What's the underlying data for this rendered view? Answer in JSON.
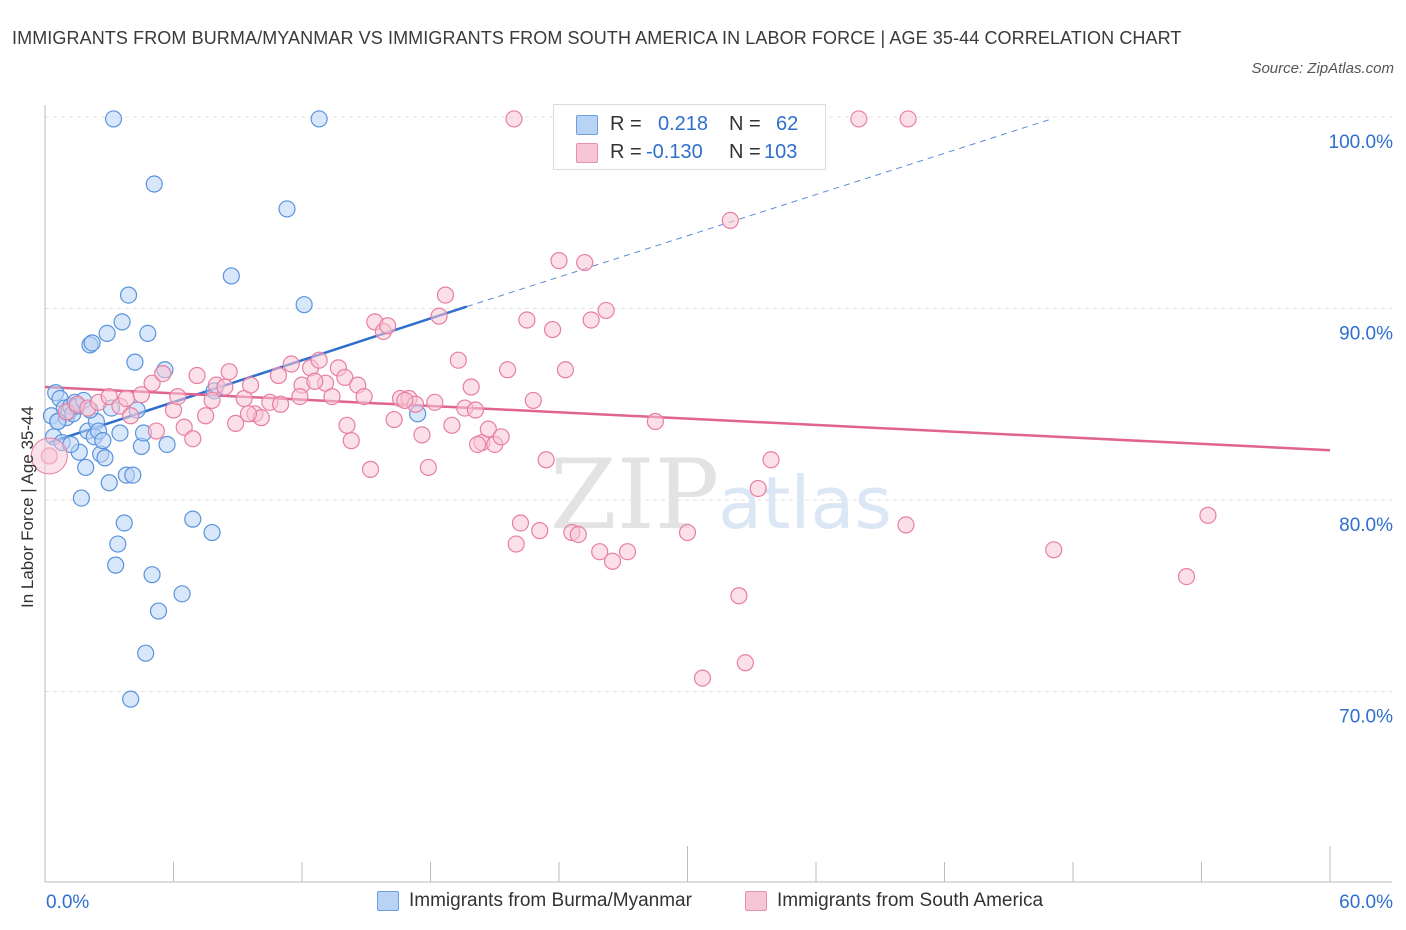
{
  "title": "IMMIGRANTS FROM BURMA/MYANMAR VS IMMIGRANTS FROM SOUTH AMERICA IN LABOR FORCE | AGE 35-44 CORRELATION CHART",
  "source": "Source: ZipAtlas.com",
  "watermark": {
    "zip": "ZIP",
    "atlas": "atlas"
  },
  "legend": [
    {
      "r_label": "R =",
      "r_value": "0.218",
      "n_label": "N =",
      "n_value": "62",
      "color": "#b9d3f5"
    },
    {
      "r_label": "R =",
      "r_value": "-0.130",
      "n_label": "N =",
      "n_value": "103",
      "color": "#f7c6d6"
    }
  ],
  "chart_data": {
    "type": "scatter",
    "title": "IMMIGRANTS FROM BURMA/MYANMAR VS IMMIGRANTS FROM SOUTH AMERICA IN LABOR FORCE | AGE 35-44 CORRELATION CHART",
    "xlabel": "",
    "ylabel": "In Labor Force | Age 35-44",
    "xlim": [
      0,
      60
    ],
    "ylim": [
      60,
      100
    ],
    "x_tick_labels": [
      "0.0%",
      "60.0%"
    ],
    "y_tick_labels": [
      "70.0%",
      "80.0%",
      "90.0%",
      "100.0%"
    ],
    "y_ticks": [
      70,
      80,
      90,
      100
    ],
    "grid": true,
    "legend_position": "bottom",
    "series": [
      {
        "name": "Immigrants from Burma/Myanmar",
        "color": "#5a93dc",
        "fill": "#b9d3f5",
        "trend": {
          "x0": 0.2,
          "y0": 83.0,
          "x1": 19.7,
          "y1": 90.1,
          "dash_to_x": 47.0,
          "dash_to_y": 99.9,
          "color": "#2f6fce"
        },
        "points": [
          [
            0.3,
            84.4
          ],
          [
            0.4,
            83.3
          ],
          [
            0.5,
            85.6
          ],
          [
            0.6,
            84.1
          ],
          [
            0.7,
            85.3
          ],
          [
            0.8,
            83.0
          ],
          [
            0.9,
            84.8
          ],
          [
            1.0,
            84.3
          ],
          [
            1.1,
            84.6
          ],
          [
            1.2,
            84.9
          ],
          [
            1.3,
            84.5
          ],
          [
            1.4,
            85.1
          ],
          [
            1.5,
            84.9
          ],
          [
            1.6,
            82.5
          ],
          [
            1.7,
            80.1
          ],
          [
            1.8,
            85.2
          ],
          [
            1.9,
            81.7
          ],
          [
            2.0,
            83.6
          ],
          [
            2.1,
            88.1
          ],
          [
            2.2,
            88.2
          ],
          [
            2.3,
            83.3
          ],
          [
            2.4,
            84.1
          ],
          [
            2.5,
            83.6
          ],
          [
            2.6,
            82.4
          ],
          [
            2.7,
            83.1
          ],
          [
            2.8,
            82.2
          ],
          [
            2.9,
            88.7
          ],
          [
            3.0,
            80.9
          ],
          [
            3.1,
            84.8
          ],
          [
            3.2,
            99.9
          ],
          [
            3.3,
            76.6
          ],
          [
            3.4,
            77.7
          ],
          [
            3.5,
            83.5
          ],
          [
            3.6,
            89.3
          ],
          [
            3.7,
            78.8
          ],
          [
            3.8,
            81.3
          ],
          [
            3.9,
            90.7
          ],
          [
            4.0,
            69.6
          ],
          [
            4.1,
            81.3
          ],
          [
            4.2,
            87.2
          ],
          [
            4.3,
            84.7
          ],
          [
            4.5,
            82.8
          ],
          [
            4.6,
            83.5
          ],
          [
            4.7,
            72.0
          ],
          [
            4.8,
            88.7
          ],
          [
            5.0,
            76.1
          ],
          [
            5.1,
            96.5
          ],
          [
            5.3,
            74.2
          ],
          [
            5.6,
            86.8
          ],
          [
            5.7,
            82.9
          ],
          [
            6.4,
            75.1
          ],
          [
            6.9,
            79.0
          ],
          [
            7.8,
            78.3
          ],
          [
            7.9,
            85.7
          ],
          [
            8.7,
            91.7
          ],
          [
            11.3,
            95.2
          ],
          [
            12.1,
            90.2
          ],
          [
            12.8,
            99.9
          ],
          [
            17.4,
            84.5
          ],
          [
            2.1,
            84.7
          ],
          [
            1.2,
            82.9
          ],
          [
            0.6,
            84.1
          ]
        ]
      },
      {
        "name": "Immigrants from South America",
        "color": "#e87ea3",
        "fill": "#f7c6d6",
        "trend": {
          "x0": 0.0,
          "y0": 85.9,
          "x1": 60.0,
          "y1": 82.6,
          "color": "#e0648f"
        },
        "points": [
          [
            0.2,
            82.3
          ],
          [
            1.0,
            84.6
          ],
          [
            1.5,
            85.0
          ],
          [
            2.0,
            84.8
          ],
          [
            2.5,
            85.1
          ],
          [
            3.0,
            85.4
          ],
          [
            3.5,
            84.9
          ],
          [
            3.8,
            85.3
          ],
          [
            4.0,
            84.4
          ],
          [
            4.5,
            85.5
          ],
          [
            5.0,
            86.1
          ],
          [
            5.5,
            86.6
          ],
          [
            6.0,
            84.7
          ],
          [
            6.5,
            83.8
          ],
          [
            6.9,
            83.2
          ],
          [
            7.1,
            86.5
          ],
          [
            7.5,
            84.4
          ],
          [
            7.8,
            85.2
          ],
          [
            8.0,
            86.0
          ],
          [
            8.4,
            85.9
          ],
          [
            8.6,
            86.7
          ],
          [
            8.9,
            84.0
          ],
          [
            9.3,
            85.3
          ],
          [
            9.6,
            86.0
          ],
          [
            9.8,
            84.5
          ],
          [
            10.1,
            84.3
          ],
          [
            10.5,
            85.1
          ],
          [
            10.9,
            86.5
          ],
          [
            11.0,
            85.0
          ],
          [
            11.5,
            87.1
          ],
          [
            12.0,
            86.0
          ],
          [
            12.4,
            86.9
          ],
          [
            12.8,
            87.3
          ],
          [
            13.1,
            86.1
          ],
          [
            13.4,
            85.4
          ],
          [
            13.7,
            86.9
          ],
          [
            14.0,
            86.4
          ],
          [
            14.3,
            83.1
          ],
          [
            14.6,
            86.0
          ],
          [
            14.9,
            85.4
          ],
          [
            15.2,
            81.6
          ],
          [
            15.4,
            89.3
          ],
          [
            15.8,
            88.8
          ],
          [
            16.0,
            89.1
          ],
          [
            16.3,
            84.2
          ],
          [
            16.6,
            85.3
          ],
          [
            17.0,
            85.3
          ],
          [
            17.3,
            85.0
          ],
          [
            17.6,
            83.4
          ],
          [
            17.9,
            81.7
          ],
          [
            18.2,
            85.1
          ],
          [
            18.4,
            89.6
          ],
          [
            18.7,
            90.7
          ],
          [
            19.0,
            83.9
          ],
          [
            19.3,
            87.3
          ],
          [
            19.6,
            84.8
          ],
          [
            19.9,
            85.9
          ],
          [
            20.1,
            84.7
          ],
          [
            20.4,
            83.0
          ],
          [
            20.7,
            83.7
          ],
          [
            21.0,
            82.9
          ],
          [
            21.3,
            83.3
          ],
          [
            21.6,
            86.8
          ],
          [
            21.9,
            99.9
          ],
          [
            22.2,
            78.8
          ],
          [
            22.5,
            89.4
          ],
          [
            22.8,
            85.2
          ],
          [
            23.1,
            78.4
          ],
          [
            23.4,
            82.1
          ],
          [
            23.7,
            88.9
          ],
          [
            24.0,
            92.5
          ],
          [
            24.3,
            86.8
          ],
          [
            24.6,
            78.3
          ],
          [
            24.9,
            78.2
          ],
          [
            25.2,
            92.4
          ],
          [
            25.5,
            89.4
          ],
          [
            25.9,
            77.3
          ],
          [
            26.2,
            89.9
          ],
          [
            26.5,
            76.8
          ],
          [
            27.2,
            77.3
          ],
          [
            28.5,
            84.1
          ],
          [
            30.0,
            78.3
          ],
          [
            30.7,
            70.7
          ],
          [
            32.0,
            94.6
          ],
          [
            32.4,
            75.0
          ],
          [
            32.7,
            71.5
          ],
          [
            33.3,
            80.6
          ],
          [
            33.9,
            82.1
          ],
          [
            38.0,
            99.9
          ],
          [
            40.3,
            99.9
          ],
          [
            40.2,
            78.7
          ],
          [
            47.1,
            77.4
          ],
          [
            53.3,
            76.0
          ],
          [
            54.3,
            79.2
          ],
          [
            22.0,
            77.7
          ],
          [
            11.9,
            85.4
          ],
          [
            9.5,
            84.5
          ],
          [
            12.6,
            86.2
          ],
          [
            5.2,
            83.6
          ],
          [
            6.2,
            85.4
          ],
          [
            14.1,
            83.9
          ],
          [
            16.8,
            85.2
          ],
          [
            20.2,
            82.9
          ]
        ]
      }
    ]
  }
}
